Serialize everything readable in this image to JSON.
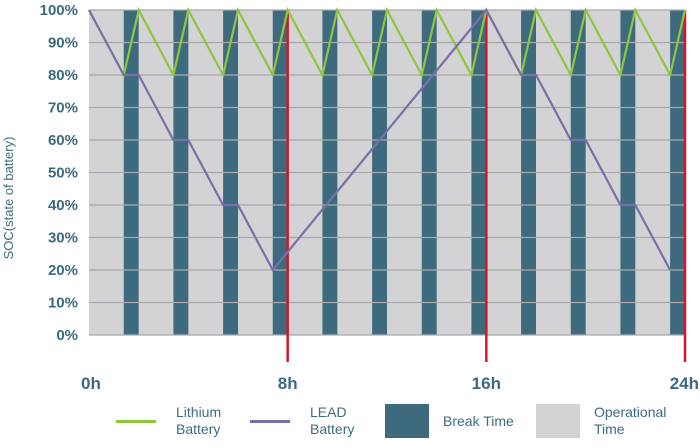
{
  "chart_data": {
    "type": "line",
    "ylabel": "SOC(state of battery)",
    "xlabel": "",
    "y_ticks": [
      "0%",
      "10%",
      "20%",
      "30%",
      "40%",
      "50%",
      "60%",
      "70%",
      "80%",
      "90%",
      "100%"
    ],
    "ylim": [
      0,
      100
    ],
    "xlim": [
      0,
      24
    ],
    "x_ticks": [
      {
        "label": "0h",
        "value": 0
      },
      {
        "label": "8h",
        "value": 8
      },
      {
        "label": "16h",
        "value": 16
      },
      {
        "label": "24h",
        "value": 24
      }
    ],
    "shift_markers_hours": [
      8,
      16,
      24
    ],
    "break_periods_hours": [
      [
        1.4,
        2.0
      ],
      [
        3.4,
        4.0
      ],
      [
        5.4,
        6.0
      ],
      [
        7.4,
        8.0
      ],
      [
        9.4,
        10.0
      ],
      [
        11.4,
        12.0
      ],
      [
        13.4,
        14.0
      ],
      [
        15.4,
        16.0
      ],
      [
        17.4,
        18.0
      ],
      [
        19.4,
        20.0
      ],
      [
        21.4,
        22.0
      ],
      [
        23.4,
        24.0
      ]
    ],
    "grid": true,
    "series": [
      {
        "name": "Lithium Battery",
        "color": "#8dc63f",
        "x": [
          0,
          1.4,
          2.0,
          3.4,
          4.0,
          5.4,
          6.0,
          7.4,
          8.0,
          9.4,
          10.0,
          11.4,
          12.0,
          13.4,
          14.0,
          15.4,
          16.0,
          17.4,
          18.0,
          19.4,
          20.0,
          21.4,
          22.0,
          23.4,
          24.0
        ],
        "y": [
          100,
          80,
          100,
          80,
          100,
          80,
          100,
          80,
          100,
          80,
          100,
          80,
          100,
          80,
          100,
          80,
          100,
          80,
          100,
          80,
          100,
          80,
          100,
          80,
          100
        ]
      },
      {
        "name": "LEAD Battery",
        "color": "#7b6fa8",
        "x": [
          0,
          1.4,
          2.0,
          3.4,
          4.0,
          5.4,
          6.0,
          7.4,
          16.0,
          17.4,
          18.0,
          19.4,
          20.0,
          21.4,
          22.0,
          23.4
        ],
        "y": [
          100,
          80,
          80,
          60,
          60,
          40,
          40,
          20,
          100,
          80,
          80,
          60,
          60,
          40,
          40,
          20
        ]
      }
    ],
    "colors": {
      "break": "#3d6b7d",
      "operational": "#d3d3d5",
      "gridline": "#a9a9ab",
      "marker": "#d2172a",
      "tick_text": "#3d6b7d"
    },
    "legend": {
      "position": "bottom",
      "items": [
        {
          "label": "Lithium\nBattery",
          "kind": "line",
          "color": "#8dc63f"
        },
        {
          "label": "LEAD\nBattery",
          "kind": "line",
          "color": "#7b6fa8"
        },
        {
          "label": "Break Time",
          "kind": "box",
          "color": "#3d6b7d"
        },
        {
          "label": "Operational\nTime",
          "kind": "box",
          "color": "#d3d3d5"
        }
      ]
    }
  }
}
